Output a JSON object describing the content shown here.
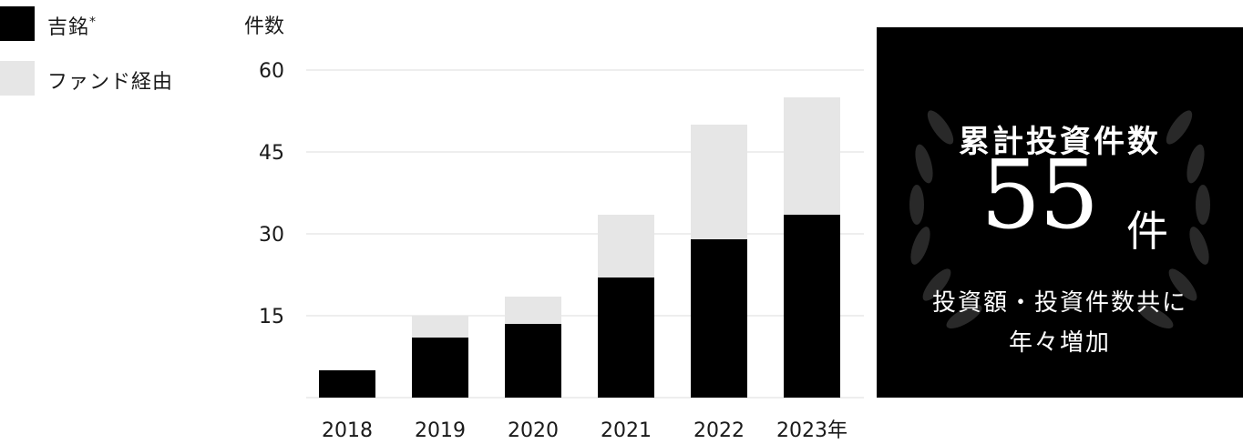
{
  "legend": {
    "own_label": "吉銘",
    "own_marker": "*",
    "fund_label": "ファンド経由"
  },
  "chart_data": {
    "type": "bar",
    "stacked": true,
    "ylabel": "件数",
    "ylim": [
      0,
      60
    ],
    "yticks": [
      15,
      30,
      45,
      60
    ],
    "categories": [
      "2018",
      "2019",
      "2020",
      "2021",
      "2022",
      "2023年"
    ],
    "series": [
      {
        "name": "吉銘",
        "color": "#000000",
        "values": [
          5,
          11,
          13.5,
          22,
          29,
          33.5
        ]
      },
      {
        "name": "ファンド経由",
        "color": "#e6e6e6",
        "values": [
          0,
          4,
          5,
          11.5,
          21,
          21.5
        ]
      }
    ],
    "grid": true
  },
  "summary": {
    "title": "累計投資件数",
    "count": "55",
    "unit": "件",
    "note_line1": "投資額・投資件数共に",
    "note_line2": "年々増加"
  },
  "colors": {
    "own": "#000000",
    "fund": "#e6e6e6",
    "panel": "#000000",
    "grid": "#e8e8e8"
  }
}
